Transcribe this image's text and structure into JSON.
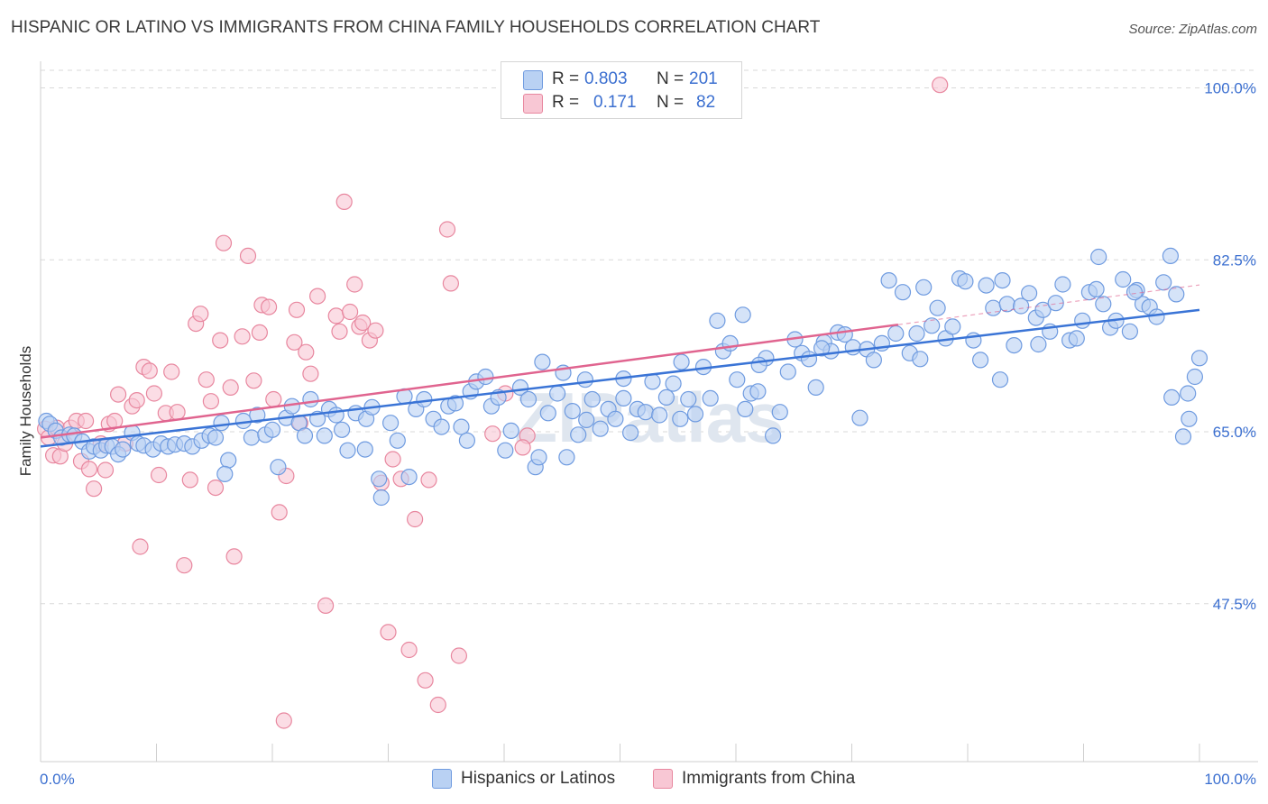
{
  "title": "HISPANIC OR LATINO VS IMMIGRANTS FROM CHINA FAMILY HOUSEHOLDS CORRELATION CHART",
  "source": "Source: ZipAtlas.com",
  "watermark": "ZIPatlas",
  "legend": {
    "r_label": "R =",
    "n_label": "N =",
    "rows": [
      {
        "r": "0.803",
        "n": "201",
        "color": "#6f9be0"
      },
      {
        "r": "0.171",
        "n": "82",
        "color": "#e8879f"
      }
    ]
  },
  "bottom_legend": [
    "Hispanics or Latinos",
    "Immigrants from China"
  ],
  "colors": {
    "blue_fill": "#b9d1f3",
    "blue_stroke": "#6f9be0",
    "blue_line": "#3a74d6",
    "pink_fill": "#f8c7d4",
    "pink_stroke": "#e8879f",
    "pink_line": "#e0648f",
    "grid": "#d9d9d9",
    "axis_label": "#3b6fd0"
  },
  "chart_data": {
    "type": "scatter",
    "xlabel": "",
    "ylabel": "Family Households",
    "xlim": [
      0,
      100
    ],
    "ylim": [
      32,
      103
    ],
    "x_tick_labels": [
      "0.0%",
      "100.0%"
    ],
    "y_ticks": [
      47.5,
      65.0,
      82.5,
      100.0
    ],
    "y_tick_labels": [
      "47.5%",
      "65.0%",
      "82.5%",
      "100.0%"
    ],
    "grid": true,
    "legend_position": "top-center",
    "series": [
      {
        "name": "Hispanics or Latinos",
        "trend": {
          "x": [
            0,
            100
          ],
          "y": [
            63.5,
            77.4
          ]
        },
        "points": [
          [
            0.5,
            66.1
          ],
          [
            0.8,
            65.8
          ],
          [
            1.3,
            65.1
          ],
          [
            1.8,
            64.4
          ],
          [
            2.5,
            64.7
          ],
          [
            2.9,
            64.6
          ],
          [
            3.6,
            64.0
          ],
          [
            4.2,
            63.0
          ],
          [
            4.6,
            63.5
          ],
          [
            5.2,
            63.1
          ],
          [
            5.7,
            63.6
          ],
          [
            6.2,
            63.5
          ],
          [
            6.7,
            62.7
          ],
          [
            7.1,
            63.2
          ],
          [
            7.9,
            64.9
          ],
          [
            8.4,
            63.8
          ],
          [
            8.9,
            63.6
          ],
          [
            9.7,
            63.2
          ],
          [
            10.4,
            63.8
          ],
          [
            11.0,
            63.5
          ],
          [
            11.6,
            63.7
          ],
          [
            12.4,
            63.8
          ],
          [
            13.1,
            63.5
          ],
          [
            13.9,
            64.1
          ],
          [
            14.6,
            64.6
          ],
          [
            15.1,
            64.4
          ],
          [
            15.6,
            65.9
          ],
          [
            16.2,
            62.1
          ],
          [
            15.9,
            60.7
          ],
          [
            17.5,
            66.1
          ],
          [
            18.2,
            64.4
          ],
          [
            18.7,
            66.7
          ],
          [
            19.4,
            64.7
          ],
          [
            20.0,
            65.2
          ],
          [
            20.5,
            61.4
          ],
          [
            21.2,
            66.4
          ],
          [
            21.7,
            67.6
          ],
          [
            22.3,
            65.9
          ],
          [
            22.8,
            64.6
          ],
          [
            23.3,
            68.3
          ],
          [
            23.9,
            66.3
          ],
          [
            24.5,
            64.6
          ],
          [
            24.9,
            67.3
          ],
          [
            25.5,
            66.7
          ],
          [
            26.0,
            65.2
          ],
          [
            26.5,
            63.1
          ],
          [
            27.2,
            66.9
          ],
          [
            28.1,
            66.3
          ],
          [
            28.6,
            67.5
          ],
          [
            29.2,
            60.2
          ],
          [
            29.4,
            58.3
          ],
          [
            30.2,
            65.9
          ],
          [
            30.8,
            64.1
          ],
          [
            31.4,
            68.6
          ],
          [
            31.8,
            60.4
          ],
          [
            32.4,
            67.3
          ],
          [
            33.1,
            68.3
          ],
          [
            33.9,
            66.3
          ],
          [
            34.6,
            65.5
          ],
          [
            35.2,
            67.6
          ],
          [
            35.8,
            67.9
          ],
          [
            36.3,
            65.5
          ],
          [
            37.1,
            69.1
          ],
          [
            37.6,
            70.1
          ],
          [
            38.4,
            70.6
          ],
          [
            38.9,
            67.6
          ],
          [
            39.5,
            68.5
          ],
          [
            40.1,
            63.1
          ],
          [
            40.6,
            65.1
          ],
          [
            41.4,
            69.5
          ],
          [
            42.1,
            68.3
          ],
          [
            42.7,
            61.4
          ],
          [
            43.3,
            72.1
          ],
          [
            43.8,
            66.9
          ],
          [
            44.6,
            68.9
          ],
          [
            45.1,
            71.0
          ],
          [
            45.4,
            62.4
          ],
          [
            45.9,
            67.1
          ],
          [
            46.4,
            64.7
          ],
          [
            47.1,
            66.2
          ],
          [
            47.6,
            68.3
          ],
          [
            48.3,
            65.3
          ],
          [
            49.0,
            67.3
          ],
          [
            49.6,
            66.3
          ],
          [
            50.3,
            68.4
          ],
          [
            50.9,
            64.9
          ],
          [
            51.5,
            67.3
          ],
          [
            52.2,
            67.0
          ],
          [
            52.8,
            70.1
          ],
          [
            53.4,
            66.7
          ],
          [
            54.0,
            68.5
          ],
          [
            54.6,
            69.9
          ],
          [
            55.3,
            72.1
          ],
          [
            55.9,
            68.3
          ],
          [
            56.5,
            66.8
          ],
          [
            57.2,
            71.6
          ],
          [
            57.8,
            68.4
          ],
          [
            58.4,
            76.3
          ],
          [
            58.9,
            73.2
          ],
          [
            59.5,
            74.0
          ],
          [
            60.1,
            70.3
          ],
          [
            60.6,
            76.9
          ],
          [
            61.3,
            68.9
          ],
          [
            61.9,
            69.1
          ],
          [
            62.6,
            72.5
          ],
          [
            63.2,
            64.6
          ],
          [
            63.8,
            67.0
          ],
          [
            64.5,
            71.1
          ],
          [
            65.1,
            74.4
          ],
          [
            65.7,
            73.0
          ],
          [
            66.3,
            72.4
          ],
          [
            66.9,
            69.5
          ],
          [
            67.6,
            74.1
          ],
          [
            68.2,
            73.2
          ],
          [
            68.8,
            75.1
          ],
          [
            69.4,
            74.9
          ],
          [
            70.1,
            73.6
          ],
          [
            70.7,
            66.4
          ],
          [
            71.3,
            73.4
          ],
          [
            71.9,
            72.3
          ],
          [
            72.6,
            74.0
          ],
          [
            73.2,
            80.4
          ],
          [
            73.8,
            75.0
          ],
          [
            74.4,
            79.2
          ],
          [
            75.0,
            73.0
          ],
          [
            75.6,
            75.0
          ],
          [
            76.2,
            79.7
          ],
          [
            76.9,
            75.8
          ],
          [
            77.4,
            77.6
          ],
          [
            78.1,
            74.5
          ],
          [
            78.7,
            75.7
          ],
          [
            79.3,
            80.6
          ],
          [
            79.8,
            80.3
          ],
          [
            80.5,
            74.3
          ],
          [
            81.1,
            72.3
          ],
          [
            81.6,
            79.9
          ],
          [
            82.2,
            77.6
          ],
          [
            82.8,
            70.3
          ],
          [
            83.4,
            78.0
          ],
          [
            84.0,
            73.8
          ],
          [
            84.6,
            77.8
          ],
          [
            85.3,
            79.1
          ],
          [
            85.9,
            76.6
          ],
          [
            86.5,
            77.4
          ],
          [
            87.1,
            75.2
          ],
          [
            87.6,
            78.1
          ],
          [
            88.2,
            80.0
          ],
          [
            88.8,
            74.3
          ],
          [
            89.4,
            74.5
          ],
          [
            89.9,
            76.3
          ],
          [
            90.5,
            79.2
          ],
          [
            91.1,
            79.5
          ],
          [
            91.7,
            78.0
          ],
          [
            92.3,
            75.6
          ],
          [
            92.8,
            76.3
          ],
          [
            93.4,
            80.5
          ],
          [
            94.0,
            75.2
          ],
          [
            94.6,
            79.4
          ],
          [
            95.1,
            78.0
          ],
          [
            95.7,
            77.7
          ],
          [
            96.3,
            76.7
          ],
          [
            96.9,
            80.2
          ],
          [
            97.5,
            82.9
          ],
          [
            98.0,
            79.0
          ],
          [
            98.6,
            64.5
          ],
          [
            99.1,
            66.3
          ],
          [
            99.6,
            70.6
          ],
          [
            100.0,
            72.5
          ],
          [
            47.0,
            70.3
          ],
          [
            62.0,
            71.8
          ],
          [
            67.4,
            73.5
          ],
          [
            75.9,
            72.4
          ],
          [
            86.1,
            73.9
          ],
          [
            91.3,
            82.8
          ],
          [
            99.0,
            68.9
          ],
          [
            97.6,
            68.5
          ],
          [
            28.0,
            63.2
          ],
          [
            36.8,
            64.1
          ],
          [
            43.0,
            62.4
          ],
          [
            60.8,
            67.3
          ],
          [
            55.2,
            66.3
          ],
          [
            50.3,
            70.4
          ],
          [
            83.0,
            80.4
          ],
          [
            94.4,
            79.2
          ]
        ]
      },
      {
        "name": "Immigrants from China",
        "trend": {
          "x": [
            0,
            74
          ],
          "y": [
            64.4,
            75.9
          ]
        },
        "points": [
          [
            0.4,
            65.3
          ],
          [
            0.7,
            64.4
          ],
          [
            1.1,
            62.6
          ],
          [
            1.4,
            65.4
          ],
          [
            1.7,
            62.5
          ],
          [
            2.1,
            63.8
          ],
          [
            2.6,
            65.4
          ],
          [
            3.1,
            66.1
          ],
          [
            3.5,
            62.0
          ],
          [
            3.9,
            66.1
          ],
          [
            4.2,
            61.2
          ],
          [
            4.6,
            59.2
          ],
          [
            5.2,
            63.8
          ],
          [
            5.6,
            61.1
          ],
          [
            5.9,
            65.8
          ],
          [
            6.4,
            66.1
          ],
          [
            6.7,
            68.8
          ],
          [
            7.3,
            63.8
          ],
          [
            7.9,
            67.6
          ],
          [
            8.3,
            68.2
          ],
          [
            8.6,
            53.3
          ],
          [
            8.9,
            71.6
          ],
          [
            9.4,
            71.2
          ],
          [
            9.8,
            68.9
          ],
          [
            10.2,
            60.6
          ],
          [
            10.8,
            66.9
          ],
          [
            11.3,
            71.1
          ],
          [
            11.8,
            67.0
          ],
          [
            12.4,
            51.4
          ],
          [
            12.9,
            60.1
          ],
          [
            13.4,
            76.0
          ],
          [
            13.8,
            77.0
          ],
          [
            14.3,
            70.3
          ],
          [
            14.7,
            68.1
          ],
          [
            15.1,
            59.3
          ],
          [
            15.5,
            74.3
          ],
          [
            15.8,
            84.2
          ],
          [
            16.4,
            69.5
          ],
          [
            16.7,
            52.3
          ],
          [
            17.4,
            74.7
          ],
          [
            17.9,
            82.9
          ],
          [
            18.4,
            70.2
          ],
          [
            18.9,
            75.1
          ],
          [
            19.1,
            77.9
          ],
          [
            19.7,
            77.7
          ],
          [
            20.1,
            68.3
          ],
          [
            20.6,
            56.8
          ],
          [
            21.2,
            60.5
          ],
          [
            21.9,
            74.1
          ],
          [
            22.1,
            77.4
          ],
          [
            22.4,
            65.9
          ],
          [
            22.9,
            73.1
          ],
          [
            23.3,
            70.9
          ],
          [
            23.9,
            78.8
          ],
          [
            24.6,
            47.3
          ],
          [
            25.5,
            76.8
          ],
          [
            25.8,
            75.2
          ],
          [
            26.2,
            88.4
          ],
          [
            26.7,
            77.2
          ],
          [
            27.1,
            80.0
          ],
          [
            27.5,
            75.7
          ],
          [
            27.8,
            76.1
          ],
          [
            28.4,
            74.3
          ],
          [
            28.9,
            75.3
          ],
          [
            30.0,
            44.6
          ],
          [
            30.4,
            62.2
          ],
          [
            31.1,
            60.2
          ],
          [
            31.8,
            42.8
          ],
          [
            32.3,
            56.1
          ],
          [
            33.2,
            39.7
          ],
          [
            34.3,
            37.2
          ],
          [
            35.1,
            85.6
          ],
          [
            35.4,
            80.1
          ],
          [
            36.1,
            42.2
          ],
          [
            40.1,
            68.9
          ],
          [
            42.0,
            64.6
          ],
          [
            41.6,
            63.4
          ],
          [
            21.0,
            35.6
          ],
          [
            39.0,
            64.8
          ],
          [
            77.6,
            100.3
          ],
          [
            33.5,
            60.1
          ],
          [
            29.4,
            59.8
          ]
        ]
      }
    ]
  }
}
